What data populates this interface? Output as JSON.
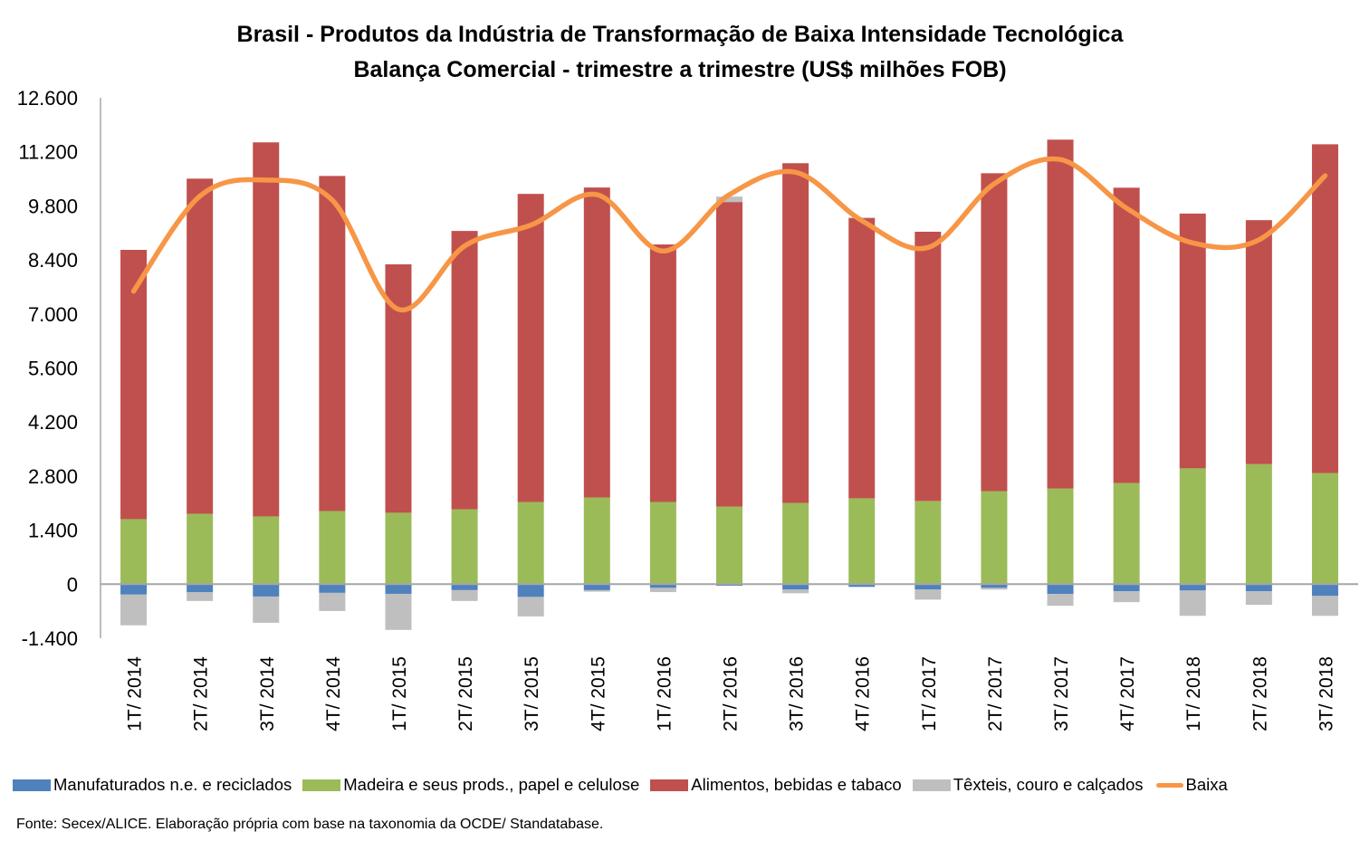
{
  "chart_data": {
    "type": "bar",
    "subtype": "stacked-bar-with-line",
    "title": "Brasil - Produtos da Indústria de Transformação de Baixa Intensidade Tecnológica",
    "subtitle": "Balança Comercial - trimestre a trimestre (US$ milhões FOB)",
    "xlabel": "",
    "ylabel": "",
    "ylim": [
      -1400,
      12600
    ],
    "yticks": [
      -1400,
      0,
      1400,
      2800,
      4200,
      5600,
      7000,
      8400,
      9800,
      11200,
      12600
    ],
    "ytick_labels": [
      "-1.400",
      "0",
      "1.400",
      "2.800",
      "4.200",
      "5.600",
      "7.000",
      "8.400",
      "9.800",
      "11.200",
      "12.600"
    ],
    "grid": false,
    "legend_position": "bottom",
    "categories": [
      "1T/ 2014",
      "2T/ 2014",
      "3T/ 2014",
      "4T/ 2014",
      "1T/ 2015",
      "2T/ 2015",
      "3T/ 2015",
      "4T/ 2015",
      "1T/ 2016",
      "2T/ 2016",
      "3T/ 2016",
      "4T/ 2016",
      "1T/ 2017",
      "2T/ 2017",
      "3T/ 2017",
      "4T/ 2017",
      "1T/ 2018",
      "2T/ 2018",
      "3T/ 2018"
    ],
    "series": [
      {
        "name": "Manufaturados n.e. e reciclados",
        "type": "bar",
        "color": "#4F81BD",
        "values": [
          -270,
          -210,
          -320,
          -225,
          -250,
          -155,
          -330,
          -155,
          -95,
          -40,
          -140,
          -70,
          -140,
          -95,
          -255,
          -185,
          -165,
          -185,
          -305
        ]
      },
      {
        "name": "Madeira e seus prods., papel e celulose",
        "type": "bar",
        "color": "#9BBB59",
        "values": [
          1685,
          1825,
          1755,
          1895,
          1850,
          1940,
          2130,
          2245,
          2130,
          2010,
          2105,
          2225,
          2155,
          2410,
          2480,
          2620,
          3000,
          3110,
          2880
        ]
      },
      {
        "name": "Alimentos, bebidas e tabaco",
        "type": "bar",
        "color": "#C0504D",
        "values": [
          6975,
          8680,
          9690,
          8680,
          6435,
          7210,
          7980,
          8030,
          6670,
          7890,
          8800,
          7255,
          6975,
          8235,
          9035,
          7650,
          6600,
          6320,
          8515
        ]
      },
      {
        "name": "Têxteis, couro e calçados",
        "type": "bar",
        "color": "#BFBFBF",
        "values": [
          -795,
          -225,
          -680,
          -470,
          -935,
          -280,
          -505,
          -40,
          -110,
          140,
          -95,
          20,
          -260,
          -45,
          -305,
          -280,
          -655,
          -350,
          -515
        ]
      },
      {
        "name": "Baixa",
        "type": "line",
        "smooth": true,
        "color": "#F79646",
        "values": [
          7590,
          10050,
          10470,
          9950,
          7120,
          8760,
          9300,
          10090,
          8630,
          10090,
          10670,
          9420,
          8720,
          10370,
          11000,
          9740,
          8840,
          8920,
          10580
        ]
      }
    ],
    "source_note": "Fonte: Secex/ALICE. Elaboração própria com base na taxonomia da OCDE/ Standatabase."
  },
  "legend": [
    {
      "label": "Manufaturados n.e. e reciclados",
      "color": "#4F81BD",
      "kind": "box"
    },
    {
      "label": "Madeira e seus prods., papel e celulose",
      "color": "#9BBB59",
      "kind": "box"
    },
    {
      "label": "Alimentos, bebidas e tabaco",
      "color": "#C0504D",
      "kind": "box"
    },
    {
      "label": "Têxteis, couro e calçados",
      "color": "#BFBFBF",
      "kind": "box"
    },
    {
      "label": "Baixa",
      "color": "#F79646",
      "kind": "line"
    }
  ]
}
